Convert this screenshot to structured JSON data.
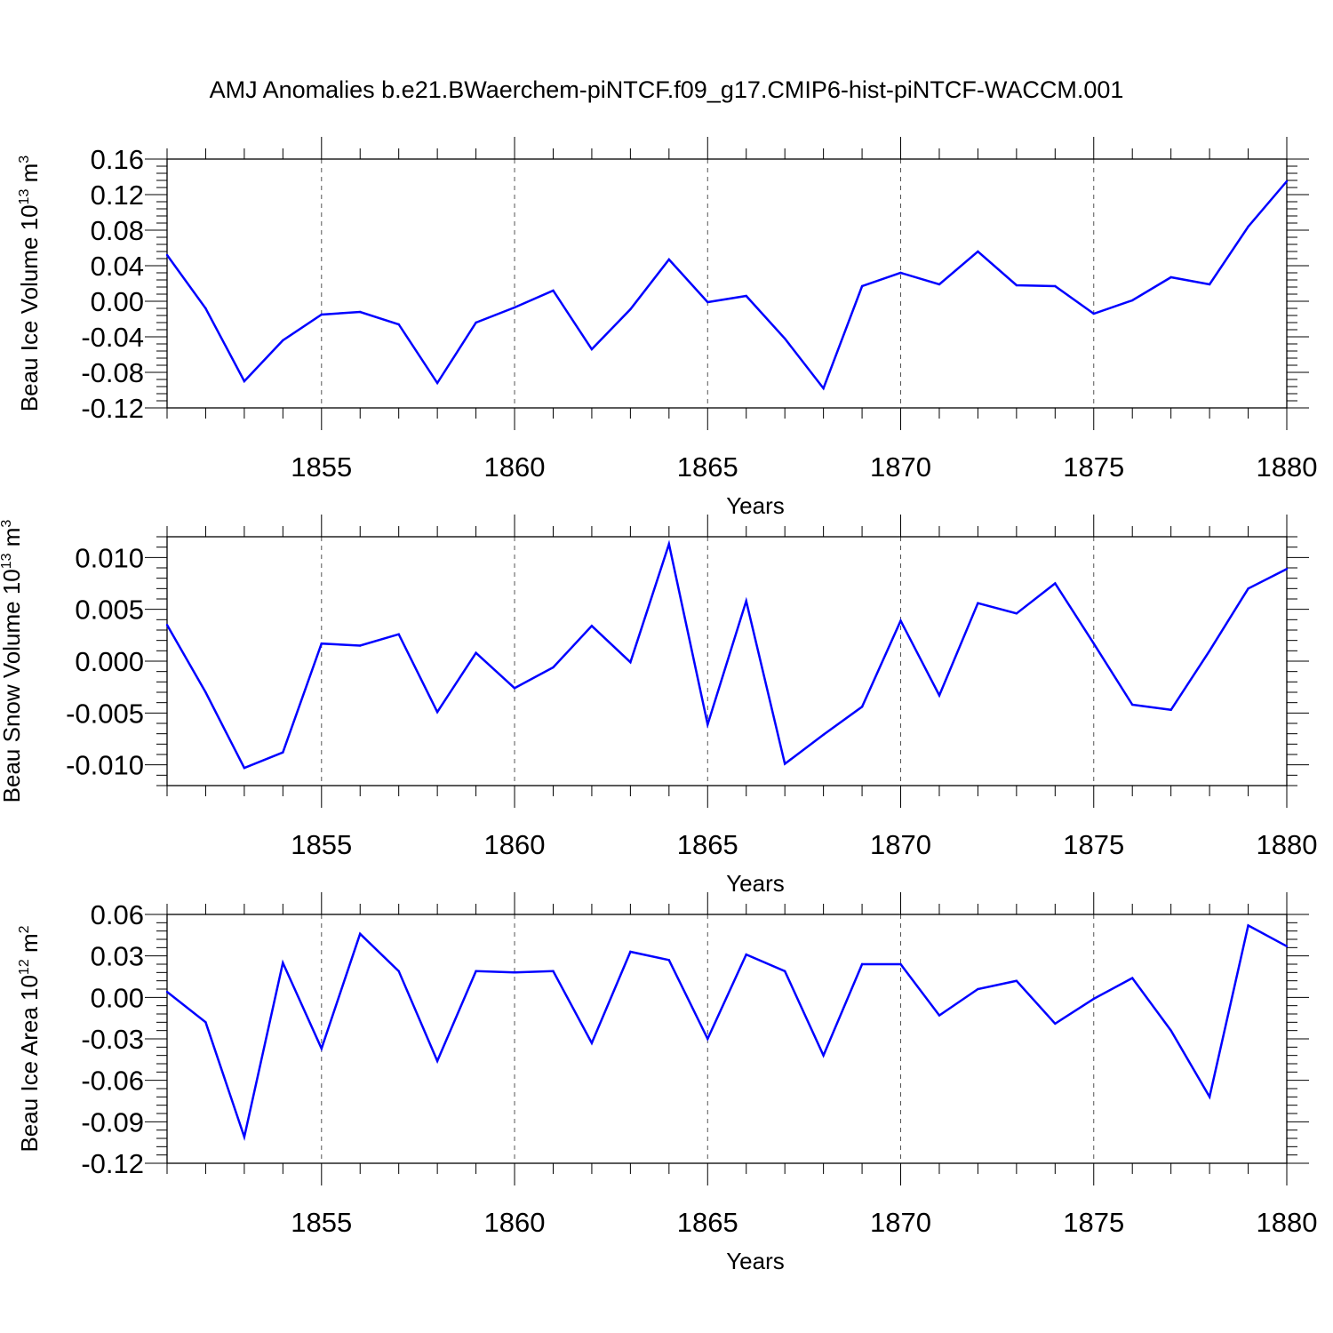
{
  "title": "AMJ Anomalies b.e21.BWaerchem-piNTCF.f09_g17.CMIP6-hist-piNTCF-WACCM.001",
  "chart_data": [
    {
      "type": "line",
      "ylabel": "Beau Ice Volume 10",
      "ylabel_exp": "13",
      "ylabel_unit": " m",
      "ylabel_unit_exp": "3",
      "xlabel": "Years",
      "xlim": [
        1851,
        1880
      ],
      "ylim": [
        -0.12,
        0.16
      ],
      "xticks": [
        "1855",
        "1860",
        "1865",
        "1870",
        "1875",
        "1880"
      ],
      "yticks": [
        "0.16",
        "0.12",
        "0.08",
        "0.04",
        "0.00",
        "-0.04",
        "-0.08",
        "-0.12"
      ],
      "line_color": "#0000ff",
      "grid": "vertical dashed",
      "x": [
        1851,
        1852,
        1853,
        1854,
        1855,
        1856,
        1857,
        1858,
        1859,
        1860,
        1861,
        1862,
        1863,
        1864,
        1865,
        1866,
        1867,
        1868,
        1869,
        1870,
        1871,
        1872,
        1873,
        1874,
        1875,
        1876,
        1877,
        1878,
        1879,
        1880
      ],
      "values": [
        0.052,
        -0.008,
        -0.09,
        -0.044,
        -0.015,
        -0.012,
        -0.026,
        -0.092,
        -0.024,
        -0.007,
        0.012,
        -0.054,
        -0.009,
        0.047,
        -0.001,
        0.006,
        -0.042,
        -0.098,
        0.017,
        0.032,
        0.019,
        0.056,
        0.018,
        0.017,
        -0.014,
        0.001,
        0.027,
        0.019,
        0.084,
        0.135
      ]
    },
    {
      "type": "line",
      "ylabel": "Beau Snow Volume 10",
      "ylabel_exp": "13",
      "ylabel_unit": " m",
      "ylabel_unit_exp": "3",
      "xlabel": "Years",
      "xlim": [
        1851,
        1880
      ],
      "ylim": [
        -0.012,
        0.012
      ],
      "xticks": [
        "1855",
        "1860",
        "1865",
        "1870",
        "1875",
        "1880"
      ],
      "yticks": [
        "0.010",
        "0.005",
        "0.000",
        "-0.005",
        "-0.010"
      ],
      "ytick_values": [
        0.01,
        0.005,
        0.0,
        -0.005,
        -0.01
      ],
      "line_color": "#0000ff",
      "grid": "vertical dashed",
      "x": [
        1851,
        1852,
        1853,
        1854,
        1855,
        1856,
        1857,
        1858,
        1859,
        1860,
        1861,
        1862,
        1863,
        1864,
        1865,
        1866,
        1867,
        1868,
        1869,
        1870,
        1871,
        1872,
        1873,
        1874,
        1875,
        1876,
        1877,
        1878,
        1879,
        1880
      ],
      "values": [
        0.0035,
        -0.003,
        -0.0103,
        -0.0088,
        0.0017,
        0.0015,
        0.0026,
        -0.0049,
        0.0008,
        -0.0026,
        -0.0006,
        0.0034,
        -0.0001,
        0.0113,
        -0.0061,
        0.0058,
        -0.0099,
        -0.0071,
        -0.0044,
        0.0039,
        -0.0033,
        0.0056,
        0.0046,
        0.0075,
        0.0017,
        -0.0042,
        -0.0047,
        0.001,
        0.007,
        0.0089
      ]
    },
    {
      "type": "line",
      "ylabel": "Beau Ice Area 10",
      "ylabel_exp": "12",
      "ylabel_unit": " m",
      "ylabel_unit_exp": "2",
      "xlabel": "Years",
      "xlim": [
        1851,
        1880
      ],
      "ylim": [
        -0.12,
        0.06
      ],
      "xticks": [
        "1855",
        "1860",
        "1865",
        "1870",
        "1875",
        "1880"
      ],
      "yticks": [
        "0.06",
        "0.03",
        "0.00",
        "-0.03",
        "-0.06",
        "-0.09",
        "-0.12"
      ],
      "line_color": "#0000ff",
      "grid": "vertical dashed",
      "x": [
        1851,
        1852,
        1853,
        1854,
        1855,
        1856,
        1857,
        1858,
        1859,
        1860,
        1861,
        1862,
        1863,
        1864,
        1865,
        1866,
        1867,
        1868,
        1869,
        1870,
        1871,
        1872,
        1873,
        1874,
        1875,
        1876,
        1877,
        1878,
        1879,
        1880
      ],
      "values": [
        0.004,
        -0.018,
        -0.101,
        0.025,
        -0.037,
        0.046,
        0.019,
        -0.046,
        0.019,
        0.018,
        0.019,
        -0.033,
        0.033,
        0.027,
        -0.03,
        0.031,
        0.019,
        -0.042,
        0.024,
        0.024,
        -0.013,
        0.006,
        0.012,
        -0.019,
        -0.001,
        0.014,
        -0.024,
        -0.072,
        0.052,
        0.037
      ]
    }
  ]
}
